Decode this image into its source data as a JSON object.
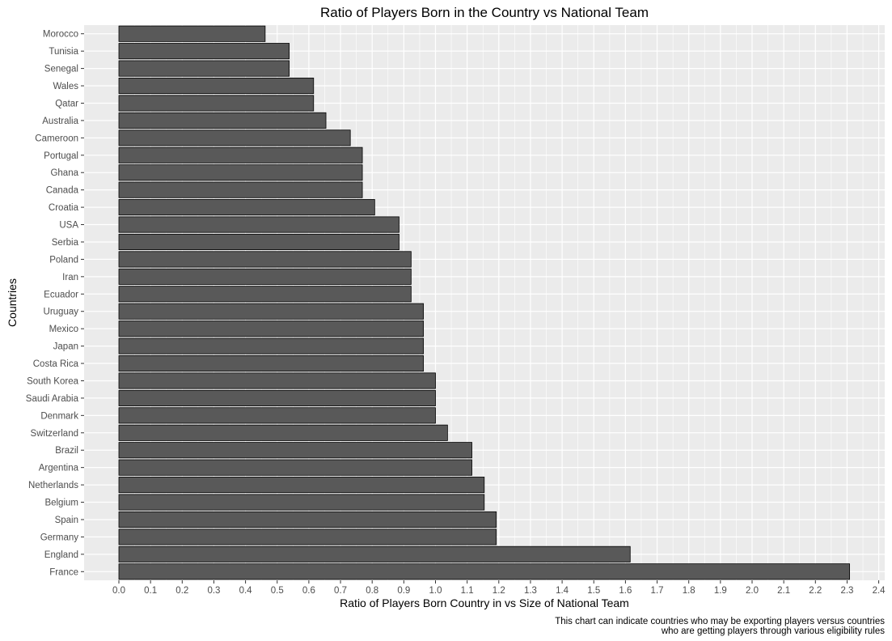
{
  "chart_data": {
    "type": "bar",
    "orientation": "horizontal",
    "title": "Ratio of Players Born in the Country vs National Team",
    "xlabel": "Ratio of Players Born Country in vs Size of National Team",
    "ylabel": "Countries",
    "caption": [
      "This chart can indicate countries who may be exporting players versus countries",
      "who are getting players through various eligibility rules"
    ],
    "xlim": [
      0,
      2.4
    ],
    "x_ticks": [
      "0.0",
      "0.1",
      "0.2",
      "0.3",
      "0.4",
      "0.5",
      "0.6",
      "0.7",
      "0.8",
      "0.9",
      "1.0",
      "1.1",
      "1.2",
      "1.3",
      "1.4",
      "1.5",
      "1.6",
      "1.7",
      "1.8",
      "1.9",
      "2.0",
      "2.1",
      "2.2",
      "2.3",
      "2.4"
    ],
    "grid": true,
    "bar_color": "#595959",
    "panel_color": "#ebebeb",
    "categories": [
      "Morocco",
      "Tunisia",
      "Senegal",
      "Wales",
      "Qatar",
      "Australia",
      "Cameroon",
      "Portugal",
      "Ghana",
      "Canada",
      "Croatia",
      "USA",
      "Serbia",
      "Poland",
      "Iran",
      "Ecuador",
      "Uruguay",
      "Mexico",
      "Japan",
      "Costa Rica",
      "South Korea",
      "Saudi Arabia",
      "Denmark",
      "Switzerland",
      "Brazil",
      "Argentina",
      "Netherlands",
      "Belgium",
      "Spain",
      "Germany",
      "England",
      "France"
    ],
    "values": [
      0.462,
      0.538,
      0.538,
      0.615,
      0.615,
      0.654,
      0.731,
      0.769,
      0.769,
      0.769,
      0.808,
      0.885,
      0.885,
      0.923,
      0.923,
      0.923,
      0.962,
      0.962,
      0.962,
      0.962,
      1.0,
      1.0,
      1.0,
      1.038,
      1.115,
      1.115,
      1.154,
      1.154,
      1.192,
      1.192,
      1.615,
      2.308
    ]
  }
}
